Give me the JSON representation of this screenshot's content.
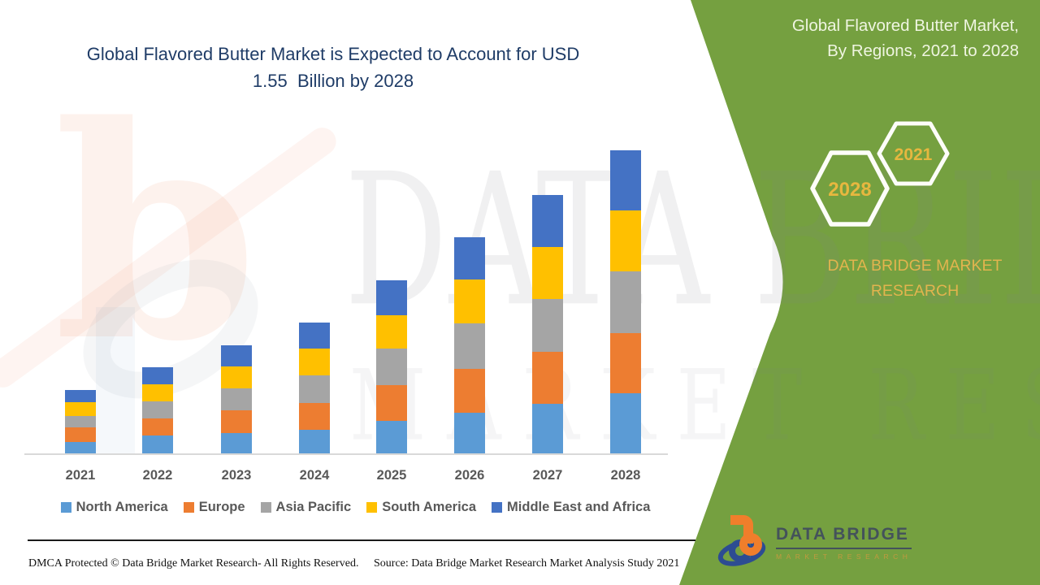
{
  "header": {
    "title_line1": "Global Flavored Butter Market is Expected to Account for USD",
    "title_line2": "1.55  Billion by 2028",
    "title_color": "#1F3C67"
  },
  "side_panel": {
    "background_color": "#75A040",
    "title_line1": "Global Flavored Butter Market,",
    "title_line2": "By Regions, 2021 to 2028",
    "hexagon_back_label": "2028",
    "hexagon_front_label": "2021",
    "hexagon_text_color": "#E7B73F",
    "caption_line1": "DATA BRIDGE MARKET",
    "caption_line2": "RESEARCH"
  },
  "chart_data": {
    "type": "bar",
    "stacked": true,
    "unit": "USD Billion",
    "title": "Global Flavored Butter Market is Expected to Account for USD 1.55 Billion by 2028",
    "xlabel": "",
    "ylabel": "",
    "ylim": [
      0,
      1.62
    ],
    "grid": false,
    "legend_position": "bottom",
    "categories": [
      "2021",
      "2022",
      "2023",
      "2024",
      "2025",
      "2026",
      "2027",
      "2028"
    ],
    "series": [
      {
        "name": "North America",
        "color": "#5B9BD5",
        "values": [
          0.063,
          0.094,
          0.11,
          0.126,
          0.171,
          0.213,
          0.257,
          0.31
        ]
      },
      {
        "name": "Europe",
        "color": "#ED7D31",
        "values": [
          0.073,
          0.09,
          0.115,
          0.137,
          0.182,
          0.224,
          0.266,
          0.307
        ]
      },
      {
        "name": "Asia Pacific",
        "color": "#A5A5A5",
        "values": [
          0.059,
          0.086,
          0.113,
          0.138,
          0.184,
          0.232,
          0.269,
          0.315
        ]
      },
      {
        "name": "South America",
        "color": "#FFC000",
        "values": [
          0.069,
          0.087,
          0.109,
          0.136,
          0.17,
          0.221,
          0.267,
          0.311
        ]
      },
      {
        "name": "Middle East and Africa",
        "color": "#4472C4",
        "values": [
          0.062,
          0.088,
          0.109,
          0.136,
          0.179,
          0.217,
          0.265,
          0.308
        ]
      }
    ],
    "totals_by_year": [
      0.326,
      0.445,
      0.556,
      0.673,
      0.886,
      1.107,
      1.324,
      1.551
    ]
  },
  "watermark": {
    "line1": "DATA BRIDGE",
    "line2": "MARKET RESEARCH",
    "logo_glyph": "b"
  },
  "footer": {
    "dmca": "DMCA Protected © Data Bridge Market Research- All Rights Reserved.",
    "source": "Source: Data Bridge Market Research Market Analysis Study 2021"
  },
  "brand_logo": {
    "name": "DATA BRIDGE",
    "tagline": "MARKET RESEARCH"
  }
}
